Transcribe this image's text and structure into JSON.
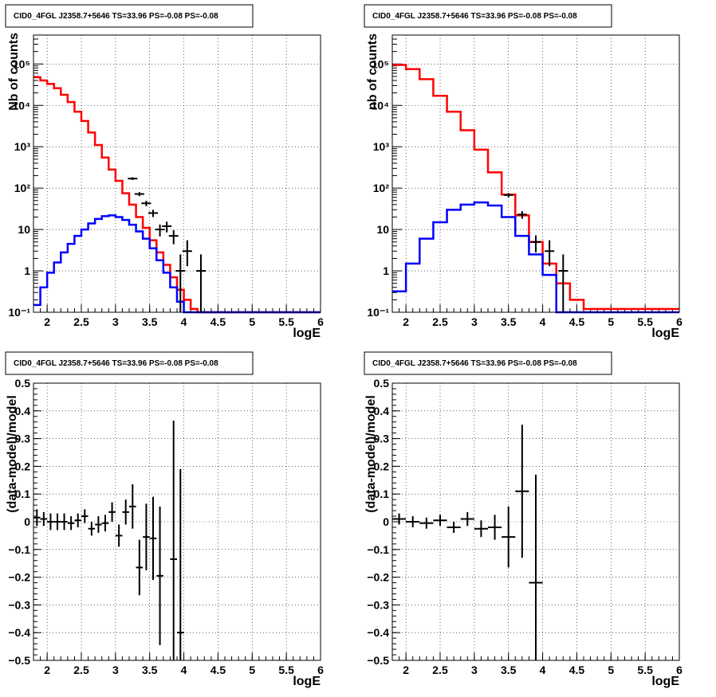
{
  "chart_data": [
    {
      "type": "line",
      "title": "CID0_4FGL J2358.7+5646 TS=33.96 PS=-0.08 PS=-0.08",
      "xlabel": "logE",
      "ylabel": "Nb of counts",
      "yscale": "log",
      "xlim": [
        1.8,
        6.0
      ],
      "ylim": [
        0.1,
        500000
      ],
      "grid": true,
      "xticks": [
        "2",
        "2.5",
        "3",
        "3.5",
        "4",
        "4.5",
        "5",
        "5.5",
        "6"
      ],
      "yticks": [
        "10⁻¹",
        "1",
        "10",
        "10²",
        "10³",
        "10⁴",
        "10⁵"
      ],
      "series": [
        {
          "color": "#ff0000",
          "style": "step",
          "bin_edges": [
            1.8,
            1.9,
            2.0,
            2.1,
            2.2,
            2.3,
            2.4,
            2.5,
            2.6,
            2.7,
            2.8,
            2.9,
            3.0,
            3.1,
            3.2,
            3.3,
            3.4,
            3.5,
            3.6,
            3.7,
            3.8,
            3.9,
            4.0,
            4.1,
            4.2,
            4.3,
            4.4,
            6.0
          ],
          "values": [
            48000,
            40000,
            33000,
            26000,
            18000,
            12000,
            7000,
            4200,
            2200,
            1100,
            550,
            280,
            150,
            75,
            40,
            20,
            11,
            5.5,
            2.8,
            1.4,
            0.7,
            0.35,
            0.2,
            0.12,
            0.1,
            0.1,
            0.1
          ]
        },
        {
          "color": "#0000ff",
          "style": "step",
          "bin_edges": [
            1.8,
            1.9,
            2.0,
            2.1,
            2.2,
            2.3,
            2.4,
            2.5,
            2.6,
            2.7,
            2.8,
            2.9,
            3.0,
            3.1,
            3.2,
            3.3,
            3.4,
            3.5,
            3.6,
            3.7,
            3.8,
            3.9,
            4.0,
            4.1,
            4.2,
            4.3,
            4.4,
            6.0
          ],
          "values": [
            0.15,
            0.4,
            0.9,
            1.6,
            2.8,
            4.5,
            7,
            10,
            14,
            18,
            21,
            22,
            20,
            17,
            13,
            9,
            6,
            3.5,
            1.8,
            0.9,
            0.4,
            0.18,
            0.1,
            0.1,
            0.1,
            0.1,
            0.1
          ]
        },
        {
          "color": "#000000",
          "style": "points-errorbars",
          "x": [
            3.25,
            3.35,
            3.45,
            3.55,
            3.65,
            3.75,
            3.85,
            3.95,
            4.05,
            4.25
          ],
          "y": [
            170,
            72,
            43,
            25,
            10,
            12,
            7,
            1,
            3,
            1
          ],
          "yerr_low": [
            13,
            8,
            6.5,
            5,
            3.2,
            3.5,
            2.6,
            0.9,
            1.7,
            0.9
          ],
          "yerr_high": [
            13,
            8,
            6.5,
            5,
            3.2,
            3.5,
            2.6,
            1.5,
            2.5,
            1.5
          ]
        }
      ]
    },
    {
      "type": "line",
      "title": "CID0_4FGL J2358.7+5646 TS=33.96 PS=-0.08 PS=-0.08",
      "xlabel": "logE",
      "ylabel": "nb of counts",
      "yscale": "log",
      "xlim": [
        1.8,
        6.0
      ],
      "ylim": [
        0.1,
        500000
      ],
      "grid": true,
      "xticks": [
        "2",
        "2.5",
        "3",
        "3.5",
        "4",
        "4.5",
        "5",
        "5.5",
        "6"
      ],
      "yticks": [
        "10⁻¹",
        "1",
        "10",
        "10²",
        "10³",
        "10⁴",
        "10⁵"
      ],
      "series": [
        {
          "color": "#ff0000",
          "style": "step",
          "bin_edges": [
            1.8,
            2.0,
            2.2,
            2.4,
            2.6,
            2.8,
            3.0,
            3.2,
            3.4,
            3.6,
            3.8,
            4.0,
            4.2,
            4.4,
            4.6,
            6.0
          ],
          "values": [
            95000,
            75000,
            43000,
            17000,
            7000,
            2500,
            850,
            240,
            70,
            22,
            5,
            1.5,
            0.5,
            0.2,
            0.12
          ]
        },
        {
          "color": "#0000ff",
          "style": "step",
          "bin_edges": [
            1.8,
            2.0,
            2.2,
            2.4,
            2.6,
            2.8,
            3.0,
            3.2,
            3.4,
            3.6,
            3.8,
            4.0,
            4.2,
            4.4,
            4.6,
            6.0
          ],
          "values": [
            0.32,
            1.5,
            6,
            15,
            30,
            40,
            45,
            38,
            20,
            7,
            2.5,
            0.8,
            0.1,
            0.1,
            0.1
          ]
        },
        {
          "color": "#000000",
          "style": "points-errorbars",
          "x": [
            3.5,
            3.7,
            3.9,
            4.1,
            4.3
          ],
          "y": [
            68,
            23,
            5,
            3,
            1
          ],
          "yerr_low": [
            8,
            4.8,
            2.2,
            1.7,
            0.9
          ],
          "yerr_high": [
            8,
            4.8,
            2.2,
            2.5,
            1.5
          ]
        }
      ]
    },
    {
      "type": "scatter",
      "title": "CID0_4FGL J2358.7+5646 TS=33.96 PS=-0.08 PS=-0.08",
      "xlabel": "logE",
      "ylabel": "(data-model)/model",
      "xlim": [
        1.8,
        6.0
      ],
      "ylim": [
        -0.5,
        0.5
      ],
      "grid": true,
      "xticks": [
        "2",
        "2.5",
        "3",
        "3.5",
        "4",
        "4.5",
        "5",
        "5.5",
        "6"
      ],
      "yticks": [
        "−0.5",
        "−0.4",
        "−0.3",
        "−0.2",
        "−0.1",
        "0",
        "0.1",
        "0.2",
        "0.3",
        "0.4",
        "0.5"
      ],
      "series": [
        {
          "color": "#000000",
          "x": [
            1.85,
            1.95,
            2.05,
            2.15,
            2.25,
            2.35,
            2.45,
            2.55,
            2.65,
            2.75,
            2.85,
            2.95,
            3.05,
            3.15,
            3.25,
            3.35,
            3.45,
            3.55,
            3.65,
            3.85,
            3.95
          ],
          "y": [
            0.015,
            0.01,
            0.0,
            0.0,
            0.0,
            -0.005,
            0.005,
            0.02,
            -0.025,
            -0.01,
            -0.005,
            0.035,
            -0.05,
            0.035,
            0.055,
            -0.165,
            -0.055,
            -0.06,
            -0.195,
            -0.135,
            -0.4
          ],
          "yerr": [
            0.03,
            0.025,
            0.03,
            0.03,
            0.03,
            0.025,
            0.025,
            0.025,
            0.025,
            0.03,
            0.03,
            0.035,
            0.04,
            0.045,
            0.08,
            0.1,
            0.12,
            0.15,
            0.25,
            0.5,
            0.59
          ],
          "xerr": 0.05
        }
      ]
    },
    {
      "type": "scatter",
      "title": "CID0_4FGL J2358.7+5646 TS=33.96 PS=-0.08 PS=-0.08",
      "xlabel": "logE",
      "ylabel": "(data-model)/model",
      "xlim": [
        1.8,
        6.0
      ],
      "ylim": [
        -0.5,
        0.5
      ],
      "grid": true,
      "xticks": [
        "2",
        "2.5",
        "3",
        "3.5",
        "4",
        "4.5",
        "5",
        "5.5",
        "6"
      ],
      "yticks": [
        "−0.5",
        "−0.4",
        "−0.3",
        "−0.2",
        "−0.1",
        "0",
        "0.1",
        "0.2",
        "0.3",
        "0.4",
        "0.5"
      ],
      "series": [
        {
          "color": "#000000",
          "x": [
            1.9,
            2.1,
            2.3,
            2.5,
            2.7,
            2.9,
            3.1,
            3.3,
            3.5,
            3.7,
            3.9
          ],
          "y": [
            0.01,
            0.0,
            -0.005,
            0.005,
            -0.02,
            0.01,
            -0.025,
            -0.02,
            -0.055,
            0.11,
            -0.22
          ],
          "yerr": [
            0.02,
            0.02,
            0.02,
            0.02,
            0.02,
            0.025,
            0.03,
            0.045,
            0.11,
            0.24,
            0.39
          ],
          "xerr": 0.1
        }
      ]
    }
  ]
}
